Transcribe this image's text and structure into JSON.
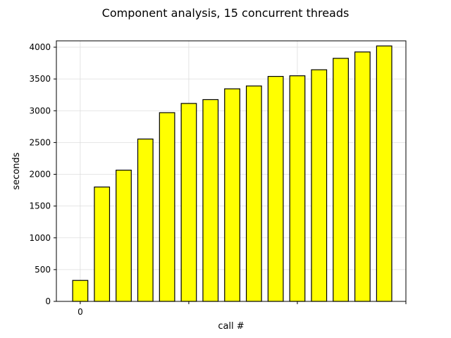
{
  "chart_data": {
    "type": "bar",
    "title": "Component analysis, 15 concurrent threads",
    "xlabel": "call #",
    "ylabel": "seconds",
    "x": [
      0,
      1,
      2,
      3,
      4,
      5,
      6,
      7,
      8,
      9,
      10,
      11,
      12,
      13,
      14
    ],
    "values": [
      330,
      1800,
      2065,
      2555,
      2970,
      3115,
      3175,
      3345,
      3390,
      3540,
      3550,
      3645,
      3825,
      3925,
      4020
    ],
    "x_tick_labels": [
      {
        "x": 0,
        "label": "0"
      }
    ],
    "x_minor_ticks_at": [
      5,
      10,
      15
    ],
    "ylim": [
      0,
      4100
    ],
    "xlim": [
      -1.1,
      15.0
    ],
    "y_ticks": [
      0,
      500,
      1000,
      1500,
      2000,
      2500,
      3000,
      3500,
      4000
    ],
    "grid": true,
    "bar_color": "#ffff00",
    "bar_edge_color": "#000000",
    "legend": false
  }
}
